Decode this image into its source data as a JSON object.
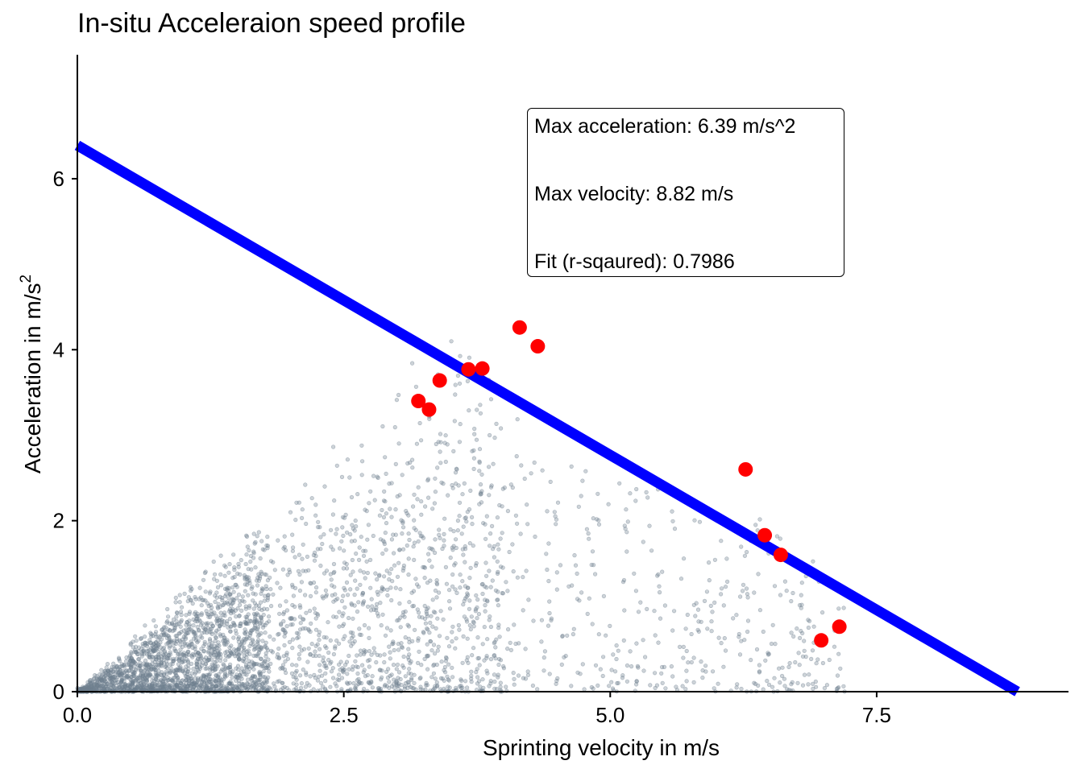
{
  "chart_data": {
    "type": "scatter",
    "title": "In-situ Acceleraion speed profile",
    "xlabel": "Sprinting velocity in m/s",
    "ylabel_main": "Acceleration in m/s",
    "ylabel_sup": "2",
    "xlim": [
      0,
      9.3
    ],
    "ylim": [
      0,
      7.45
    ],
    "xticks": [
      0.0,
      2.5,
      5.0,
      7.5
    ],
    "xtick_labels": [
      "0.0",
      "2.5",
      "5.0",
      "7.5"
    ],
    "yticks": [
      0,
      2,
      4,
      6
    ],
    "ytick_labels": [
      "0",
      "2",
      "4",
      "6"
    ],
    "grid": false,
    "background_points_count": 3500,
    "background_points_color": "#708090",
    "highlight_color": "#ff0000",
    "fit_color": "#0000ff",
    "fit_line": {
      "intercept": 6.39,
      "x_intercept": 8.82
    },
    "highlight_points": [
      {
        "x": 3.2,
        "y": 3.4
      },
      {
        "x": 3.3,
        "y": 3.3
      },
      {
        "x": 3.4,
        "y": 3.64
      },
      {
        "x": 3.67,
        "y": 3.77
      },
      {
        "x": 3.8,
        "y": 3.78
      },
      {
        "x": 4.15,
        "y": 4.26
      },
      {
        "x": 4.32,
        "y": 4.04
      },
      {
        "x": 6.27,
        "y": 2.6
      },
      {
        "x": 6.45,
        "y": 1.83
      },
      {
        "x": 6.6,
        "y": 1.6
      },
      {
        "x": 6.98,
        "y": 0.6
      },
      {
        "x": 7.15,
        "y": 0.76
      }
    ],
    "annotations": [
      "Max acceleration: 6.39 m/s^2",
      "Max velocity: 8.82 m/s",
      "Fit (r-sqaured): 0.7986"
    ]
  }
}
